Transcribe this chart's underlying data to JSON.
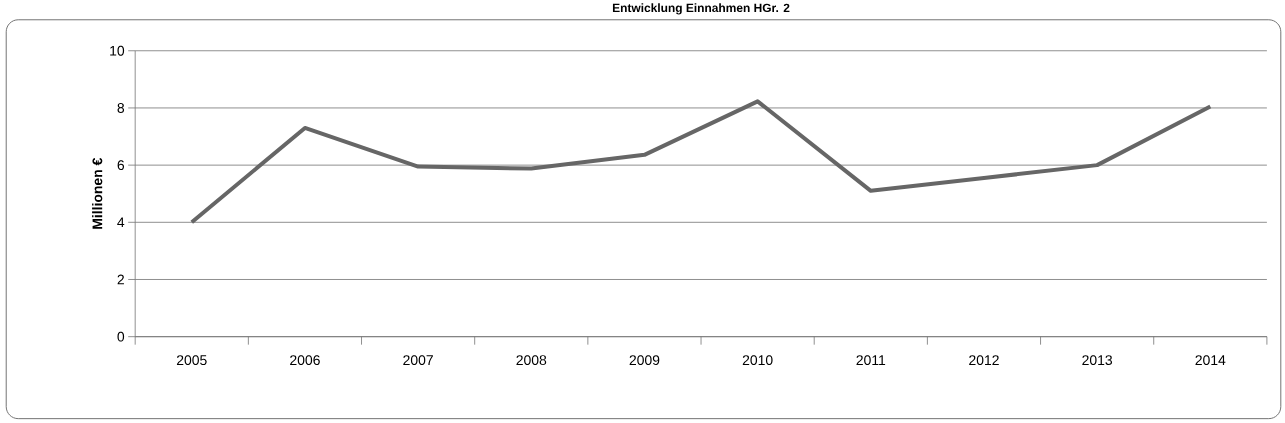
{
  "chart_data": {
    "type": "line",
    "title": "Entwicklung Einnahmen HGr. 2",
    "ylabel": "Millionen €",
    "categories": [
      "2005",
      "2006",
      "2007",
      "2008",
      "2009",
      "2010",
      "2011",
      "2012",
      "2013",
      "2014"
    ],
    "series": [
      {
        "color": "#666666",
        "values": [
          4.0,
          7.3,
          5.95,
          5.88,
          6.36,
          8.23,
          5.1,
          5.55,
          6.0,
          8.05
        ]
      }
    ],
    "ylim": [
      0,
      10
    ],
    "yticks": [
      0,
      2,
      4,
      6,
      8,
      10
    ],
    "grid": "y",
    "legend": false,
    "marker": "none",
    "line_style": "solid"
  }
}
